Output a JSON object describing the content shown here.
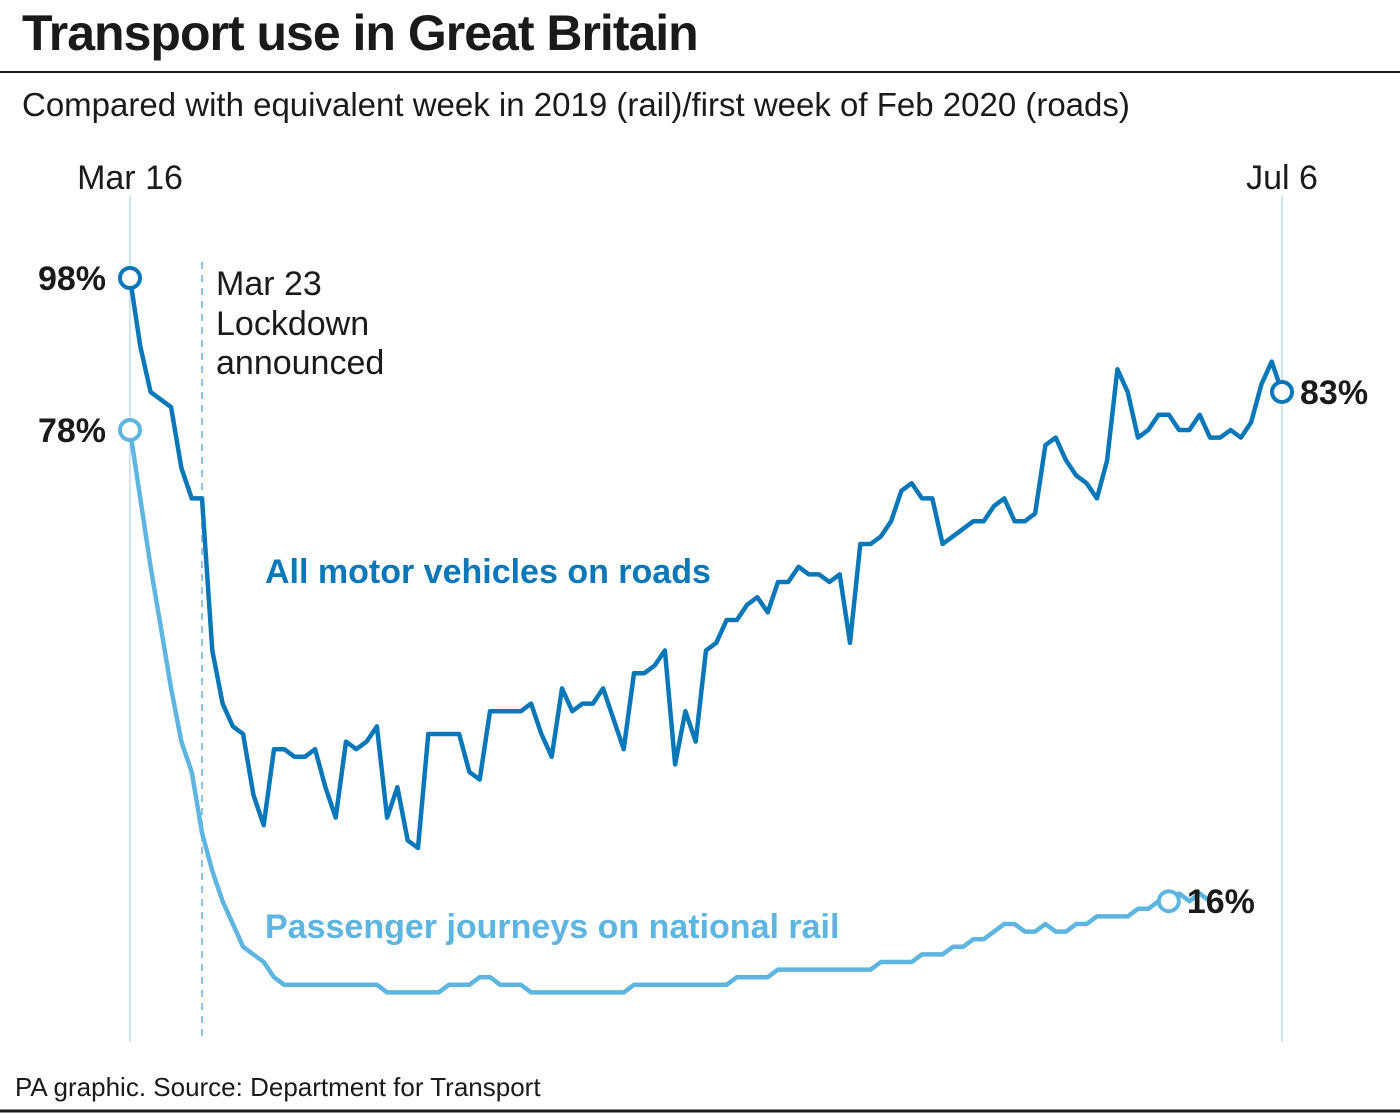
{
  "chart_data": {
    "type": "line",
    "title": "Transport use in Great Britain",
    "subtitle": "Compared with equivalent week in 2019 (rail)/first week of Feb 2020 (roads)",
    "source": "PA graphic. Source: Department for Transport",
    "categories": [
      "Mar 16",
      null,
      null,
      null,
      null,
      null,
      null,
      "Mar 23",
      null,
      null,
      null,
      null,
      null,
      null,
      null,
      null,
      null,
      null,
      null,
      null,
      null,
      null,
      null,
      null,
      null,
      null,
      null,
      null,
      null,
      null,
      null,
      null,
      null,
      null,
      null,
      null,
      null,
      null,
      null,
      null,
      null,
      null,
      null,
      null,
      null,
      null,
      null,
      null,
      null,
      null,
      null,
      null,
      null,
      null,
      null,
      null,
      null,
      null,
      null,
      null,
      null,
      null,
      null,
      null,
      null,
      null,
      null,
      null,
      null,
      null,
      null,
      null,
      null,
      null,
      null,
      null,
      null,
      null,
      null,
      null,
      null,
      null,
      null,
      null,
      null,
      null,
      null,
      null,
      null,
      null,
      null,
      null,
      null,
      null,
      null,
      null,
      null,
      null,
      null,
      null,
      null,
      null,
      null,
      null,
      null,
      null,
      null,
      null,
      null,
      null,
      null,
      null,
      "Jul 6"
    ],
    "annotation": {
      "text": [
        "Lockdown",
        "announced"
      ]
    },
    "series": [
      {
        "name": "All motor vehicles on roads",
        "color": "#0a78b8",
        "values": [
          98,
          89,
          83,
          82,
          81,
          73,
          69,
          69,
          49,
          42,
          39,
          38,
          30,
          26,
          36,
          36,
          35,
          35,
          36,
          31,
          27,
          37,
          36,
          37,
          39,
          27,
          31,
          24,
          23,
          38,
          38,
          38,
          38,
          33,
          32,
          41,
          41,
          41,
          41,
          42,
          38,
          35,
          44,
          41,
          42,
          42,
          44,
          40,
          36,
          46,
          46,
          47,
          49,
          34,
          41,
          37,
          49,
          50,
          53,
          53,
          55,
          56,
          54,
          58,
          58,
          60,
          59,
          59,
          58,
          59,
          50,
          63,
          63,
          64,
          66,
          70,
          71,
          69,
          69,
          63,
          64,
          65,
          66,
          66,
          68,
          69,
          66,
          66,
          67,
          76,
          77,
          74,
          72,
          71,
          69,
          74,
          86,
          83,
          77,
          78,
          80,
          80,
          78,
          78,
          80,
          77,
          77,
          78,
          77,
          79,
          84,
          87,
          83
        ],
        "value_labels": [
          "98%",
          null,
          null,
          null,
          null,
          null,
          null,
          null,
          null,
          null,
          null,
          null,
          null,
          null,
          null,
          null,
          null,
          null,
          null,
          null,
          null,
          null,
          null,
          null,
          null,
          null,
          null,
          null,
          null,
          null,
          null,
          null,
          null,
          null,
          null,
          null,
          null,
          null,
          null,
          null,
          null,
          null,
          null,
          null,
          null,
          null,
          null,
          null,
          null,
          null,
          null,
          null,
          null,
          null,
          null,
          null,
          null,
          null,
          null,
          null,
          null,
          null,
          null,
          null,
          null,
          null,
          null,
          null,
          null,
          null,
          null,
          null,
          null,
          null,
          null,
          null,
          null,
          null,
          null,
          null,
          null,
          null,
          null,
          null,
          null,
          null,
          null,
          null,
          null,
          null,
          null,
          null,
          null,
          null,
          null,
          null,
          null,
          null,
          null,
          null,
          null,
          null,
          null,
          null,
          null,
          null,
          null,
          null,
          null,
          null,
          null,
          null,
          "83%"
        ]
      },
      {
        "name": "Passenger journeys on national rail",
        "color": "#5db5e0",
        "values": [
          78,
          69,
          60,
          52,
          44,
          37,
          33,
          25,
          20,
          16,
          13,
          10,
          9,
          8,
          6,
          5,
          5,
          5,
          5,
          5,
          5,
          5,
          5,
          5,
          5,
          4,
          4,
          4,
          4,
          4,
          4,
          5,
          5,
          5,
          6,
          6,
          5,
          5,
          5,
          4,
          4,
          4,
          4,
          4,
          4,
          4,
          4,
          4,
          4,
          5,
          5,
          5,
          5,
          5,
          5,
          5,
          5,
          5,
          5,
          6,
          6,
          6,
          6,
          7,
          7,
          7,
          7,
          7,
          7,
          7,
          7,
          7,
          7,
          8,
          8,
          8,
          8,
          9,
          9,
          9,
          10,
          10,
          11,
          11,
          12,
          13,
          13,
          12,
          12,
          13,
          12,
          12,
          13,
          13,
          14,
          14,
          14,
          14,
          15,
          15,
          16,
          16,
          17,
          16,
          17,
          16,
          null,
          null,
          null,
          null,
          null,
          null,
          null
        ],
        "value_labels": [
          "78%",
          null,
          null,
          null,
          null,
          null,
          null,
          null,
          null,
          null,
          null,
          null,
          null,
          null,
          null,
          null,
          null,
          null,
          null,
          null,
          null,
          null,
          null,
          null,
          null,
          null,
          null,
          null,
          null,
          null,
          null,
          null,
          null,
          null,
          null,
          null,
          null,
          null,
          null,
          null,
          null,
          null,
          null,
          null,
          null,
          null,
          null,
          null,
          null,
          null,
          null,
          null,
          null,
          null,
          null,
          null,
          null,
          null,
          null,
          null,
          null,
          null,
          null,
          null,
          null,
          null,
          null,
          null,
          null,
          null,
          null,
          null,
          null,
          null,
          null,
          null,
          null,
          null,
          null,
          null,
          null,
          null,
          null,
          null,
          null,
          null,
          null,
          null,
          null,
          null,
          null,
          null,
          null,
          null,
          null,
          null,
          null,
          null,
          null,
          null,
          null,
          "16%",
          null,
          null,
          null,
          null,
          null,
          null,
          null
        ]
      }
    ]
  }
}
